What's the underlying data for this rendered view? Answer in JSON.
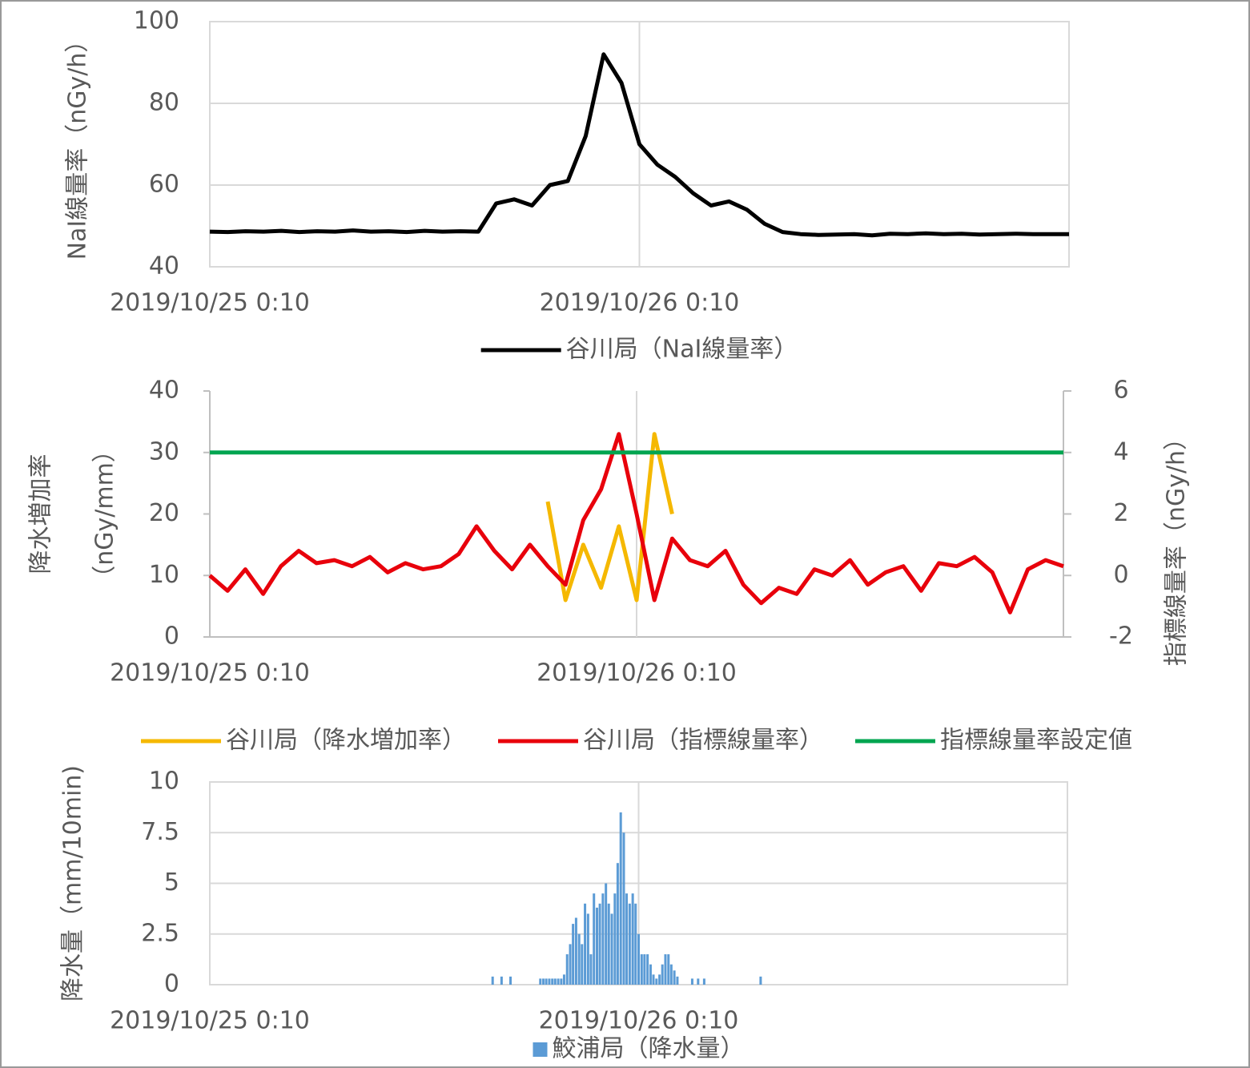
{
  "chart_data": [
    {
      "type": "line",
      "ylabel": "NaI線量率（nGy/h）",
      "grid": true,
      "xlim": [
        0,
        48
      ],
      "xticks": [
        {
          "value": 0,
          "label": "2019/10/25 0:10"
        },
        {
          "value": 24,
          "label": "2019/10/26 0:10"
        }
      ],
      "ylim": [
        40,
        100
      ],
      "yticks": [
        40,
        60,
        80,
        100
      ],
      "x": [
        0,
        1,
        2,
        3,
        4,
        5,
        6,
        7,
        8,
        9,
        10,
        11,
        12,
        13,
        14,
        15,
        16,
        17,
        18,
        19,
        20,
        21,
        22,
        23,
        24,
        25,
        26,
        27,
        28,
        29,
        30,
        31,
        32,
        33,
        34,
        35,
        36,
        37,
        38,
        39,
        40,
        41,
        42,
        43,
        44,
        45,
        46,
        47,
        48
      ],
      "series": [
        {
          "name": "谷川局（NaI線量率）",
          "color": "#000000",
          "values": [
            48.6,
            48.5,
            48.7,
            48.6,
            48.8,
            48.5,
            48.7,
            48.6,
            48.9,
            48.6,
            48.7,
            48.5,
            48.8,
            48.6,
            48.7,
            48.6,
            55.5,
            56.5,
            55,
            60,
            61,
            72,
            92,
            85,
            70,
            65,
            62,
            58,
            55,
            56,
            54,
            50.5,
            48.5,
            48,
            47.8,
            47.9,
            48,
            47.7,
            48.1,
            48,
            48.2,
            48,
            48.1,
            47.9,
            48,
            48.1,
            48,
            48,
            48
          ]
        }
      ]
    },
    {
      "type": "line",
      "ylabel": [
        "降水増加率",
        "（nGy/mm）"
      ],
      "y2label": "指標線量率（nGy/h）",
      "grid": false,
      "xlim": [
        0,
        48
      ],
      "xticks": [
        {
          "value": 0,
          "label": "2019/10/25 0:10"
        },
        {
          "value": 24,
          "label": "2019/10/26 0:10"
        }
      ],
      "ylim": [
        0,
        40
      ],
      "yticks": [
        0,
        10,
        20,
        30,
        40
      ],
      "y2lim": [
        -2,
        6
      ],
      "y2ticks": [
        -2,
        0,
        2,
        4,
        6
      ],
      "x": [
        0,
        1,
        2,
        3,
        4,
        5,
        6,
        7,
        8,
        9,
        10,
        11,
        12,
        13,
        14,
        15,
        16,
        17,
        18,
        19,
        20,
        21,
        22,
        23,
        24,
        25,
        26,
        27,
        28,
        29,
        30,
        31,
        32,
        33,
        34,
        35,
        36,
        37,
        38,
        39,
        40,
        41,
        42,
        43,
        44,
        45,
        46,
        47,
        48
      ],
      "series": [
        {
          "name": "谷川局（降水増加率）",
          "color": "#f5b800",
          "values": [
            null,
            null,
            null,
            null,
            null,
            null,
            null,
            null,
            null,
            null,
            null,
            null,
            null,
            null,
            null,
            null,
            null,
            null,
            null,
            22,
            6,
            15,
            8,
            18,
            6,
            33,
            20,
            null,
            null,
            null,
            null,
            null,
            null,
            null,
            null,
            null,
            null,
            null,
            null,
            null,
            null,
            null,
            null,
            null,
            null,
            null,
            null,
            null,
            null
          ]
        },
        {
          "name": "谷川局（指標線量率）",
          "color": "#e8000b",
          "axis": "y2",
          "values": [
            0,
            -0.5,
            0.2,
            -0.6,
            0.3,
            0.8,
            0.4,
            0.5,
            0.3,
            0.6,
            0.1,
            0.4,
            0.2,
            0.3,
            0.7,
            1.6,
            0.8,
            0.2,
            1.0,
            0.3,
            -0.3,
            1.8,
            2.8,
            4.6,
            2.0,
            -0.8,
            1.2,
            0.5,
            0.3,
            0.8,
            -0.3,
            -0.9,
            -0.4,
            -0.6,
            0.2,
            0.0,
            0.5,
            -0.3,
            0.1,
            0.3,
            -0.5,
            0.4,
            0.3,
            0.6,
            0.1,
            -1.2,
            0.2,
            0.5,
            0.3
          ]
        },
        {
          "name": "指標線量率設定値",
          "color": "#00a550",
          "axis": "y2",
          "values": [
            4,
            4,
            4,
            4,
            4,
            4,
            4,
            4,
            4,
            4,
            4,
            4,
            4,
            4,
            4,
            4,
            4,
            4,
            4,
            4,
            4,
            4,
            4,
            4,
            4,
            4,
            4,
            4,
            4,
            4,
            4,
            4,
            4,
            4,
            4,
            4,
            4,
            4,
            4,
            4,
            4,
            4,
            4,
            4,
            4,
            4,
            4,
            4,
            4
          ]
        }
      ]
    },
    {
      "type": "bar",
      "ylabel": "降水量（mm/10min)",
      "grid": true,
      "xlim": [
        0,
        48
      ],
      "xticks": [
        {
          "value": 0,
          "label": "2019/10/25 0:10"
        },
        {
          "value": 24,
          "label": "2019/10/26 0:10"
        }
      ],
      "ylim": [
        0,
        10
      ],
      "yticks": [
        0,
        2.5,
        5,
        7.5,
        10
      ],
      "x": [
        15.83,
        16.33,
        16.83,
        18.5,
        18.67,
        18.83,
        19,
        19.17,
        19.33,
        19.5,
        19.67,
        19.83,
        20,
        20.17,
        20.33,
        20.5,
        20.67,
        20.83,
        21,
        21.17,
        21.33,
        21.5,
        21.67,
        21.83,
        22,
        22.17,
        22.33,
        22.5,
        22.67,
        22.83,
        23,
        23.17,
        23.33,
        23.5,
        23.67,
        23.83,
        24,
        24.17,
        24.33,
        24.5,
        24.67,
        24.83,
        25,
        25.17,
        25.33,
        25.5,
        25.67,
        25.83,
        26,
        26.17,
        27,
        27.33,
        27.67,
        30.83
      ],
      "series": [
        {
          "name": "鮫浦局（降水量）",
          "color": "#5b9bd5",
          "values": [
            0.4,
            0.4,
            0.4,
            0.3,
            0.3,
            0.3,
            0.3,
            0.3,
            0.3,
            0.3,
            0.3,
            0.5,
            1.5,
            2,
            3,
            3.3,
            2.5,
            2,
            4,
            3.5,
            1.5,
            4.5,
            3.8,
            4,
            4.5,
            5,
            4,
            3.5,
            4.5,
            6,
            8.5,
            7.5,
            4.5,
            4,
            4.5,
            4,
            2.5,
            1.5,
            1.5,
            1.5,
            1,
            0.5,
            0.3,
            0.5,
            1,
            1.5,
            1.5,
            1,
            0.7,
            0.4,
            0.3,
            0.3,
            0.3,
            0.4
          ]
        }
      ]
    }
  ]
}
